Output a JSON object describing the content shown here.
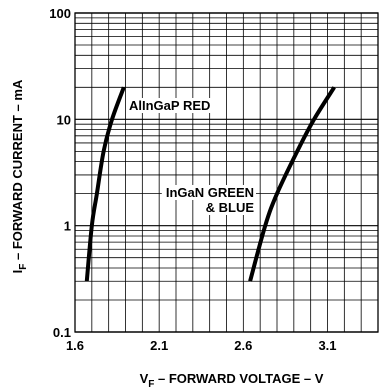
{
  "chart_data": {
    "type": "line",
    "xlabel": {
      "main": "V",
      "sub": "F",
      "rest": " – FORWARD VOLTAGE – V"
    },
    "ylabel": {
      "main": "I",
      "sub": "F",
      "rest": " – FORWARD CURRENT – mA"
    },
    "xlim": [
      1.6,
      3.4
    ],
    "ylim": [
      0.1,
      100
    ],
    "yscale": "log",
    "x_ticks": [
      1.6,
      2.1,
      2.6,
      3.1
    ],
    "x_tick_labels": [
      "1.6",
      "2.1",
      "2.6",
      "3.1"
    ],
    "y_ticks": [
      0.1,
      1,
      10,
      100
    ],
    "y_tick_labels": [
      "0.1",
      "1",
      "10",
      "100"
    ],
    "grid": true,
    "series": [
      {
        "name": "AlInGaP RED",
        "label_lines": [
          "AlInGaP RED"
        ],
        "x": [
          1.67,
          1.7,
          1.73,
          1.77,
          1.82,
          1.89
        ],
        "y": [
          0.3,
          1,
          2,
          5,
          10,
          20
        ]
      },
      {
        "name": "InGaN GREEN & BLUE",
        "label_lines": [
          "InGaN GREEN",
          "& BLUE"
        ],
        "x": [
          2.64,
          2.73,
          2.8,
          2.92,
          3.02,
          3.14
        ],
        "y": [
          0.3,
          1,
          2,
          5,
          10,
          20
        ]
      }
    ]
  }
}
